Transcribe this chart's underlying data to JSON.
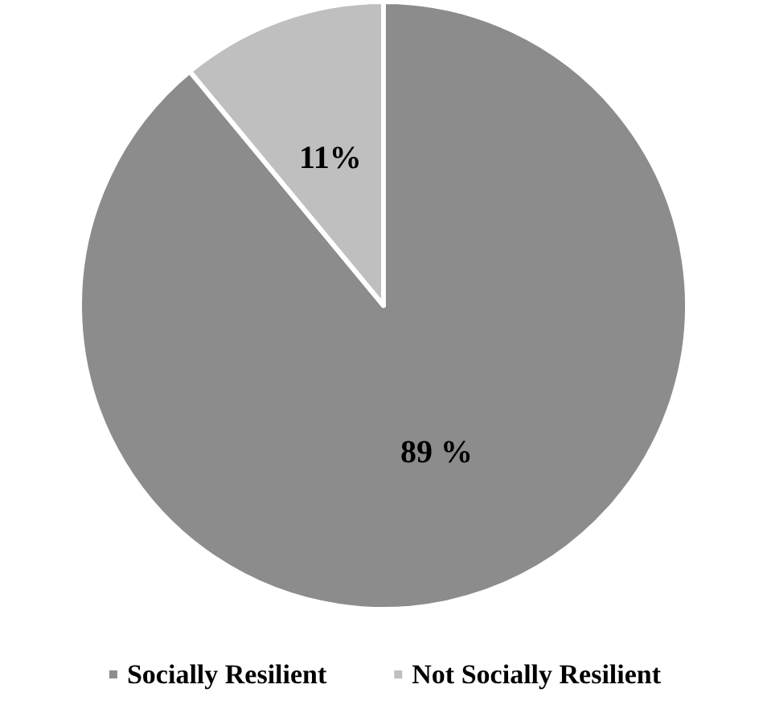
{
  "chart_data": {
    "type": "pie",
    "categories": [
      "Socially Resilient",
      "Not Socially Resilient"
    ],
    "values": [
      89,
      11
    ],
    "colors": [
      "#8c8c8c",
      "#bfbfbf"
    ],
    "value_labels": [
      "89 %",
      "11%"
    ],
    "legend": "bottom"
  }
}
